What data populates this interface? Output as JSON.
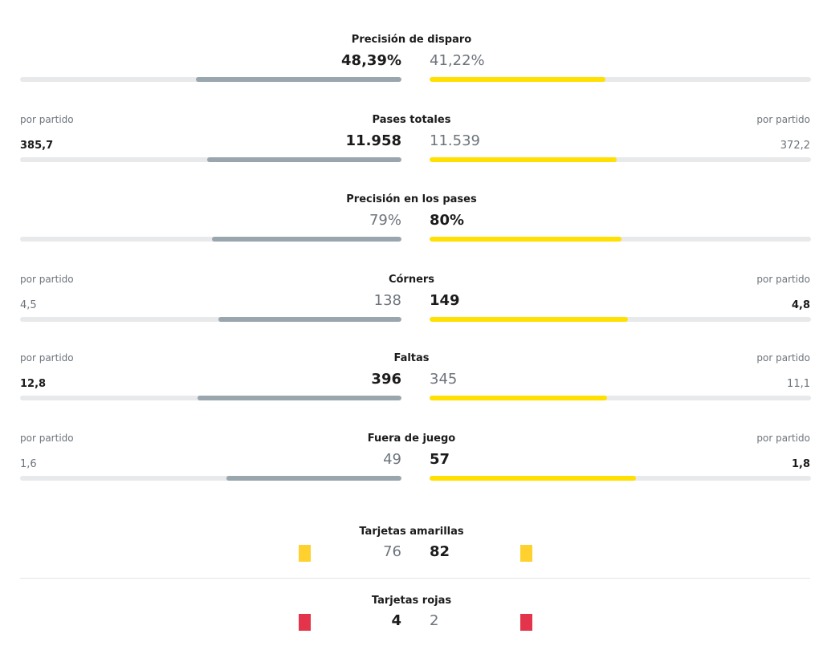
{
  "stats": [
    {
      "title": "Precisión de disparo",
      "home": {
        "value": "48,39%",
        "fraction": 0.54
      },
      "away": {
        "value": "41,22%",
        "fraction": 0.46
      }
    },
    {
      "title": "Pases totales",
      "per_label": "por partido",
      "home": {
        "value": "11.958",
        "per_game": "385,7",
        "fraction": 0.51
      },
      "away": {
        "value": "11.539",
        "per_game": "372,2",
        "fraction": 0.49
      }
    },
    {
      "title": "Precisión en los pases",
      "home": {
        "value": "79%",
        "fraction": 0.497
      },
      "away": {
        "value": "80%",
        "fraction": 0.503
      }
    },
    {
      "title": "Córners",
      "per_label": "por partido",
      "home": {
        "value": "138",
        "per_game": "4,5",
        "fraction": 0.48
      },
      "away": {
        "value": "149",
        "per_game": "4,8",
        "fraction": 0.52
      }
    },
    {
      "title": "Faltas",
      "per_label": "por partido",
      "home": {
        "value": "396",
        "per_game": "12,8",
        "fraction": 0.535
      },
      "away": {
        "value": "345",
        "per_game": "11,1",
        "fraction": 0.465
      }
    },
    {
      "title": "Fuera de juego",
      "per_label": "por partido",
      "home": {
        "value": "49",
        "per_game": "1,6",
        "fraction": 0.46
      },
      "away": {
        "value": "57",
        "per_game": "1,8",
        "fraction": 0.54
      }
    }
  ],
  "cards": {
    "yellow": {
      "title": "Tarjetas amarillas",
      "home": "76",
      "away": "82"
    },
    "red": {
      "title": "Tarjetas rojas",
      "home": "4",
      "away": "2"
    }
  },
  "colors": {
    "home_bar": "#9aa6ae",
    "away_bar": "#ffe000",
    "track": "#e8e9eb",
    "yellow_card": "#ffd12e",
    "red_card": "#e3344c"
  }
}
